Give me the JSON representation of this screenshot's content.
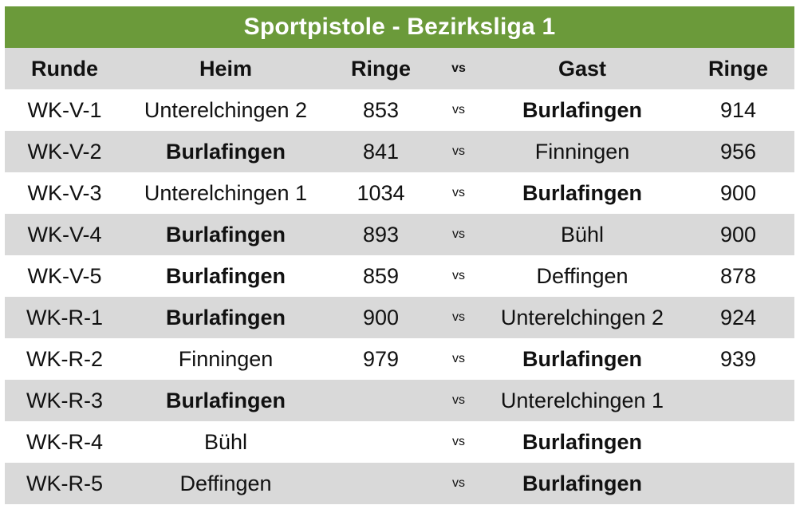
{
  "title": "Sportpistole - Bezirksliga 1",
  "colors": {
    "title_bg": "#6b9a3a",
    "title_text": "#ffffff",
    "row_shaded": "#d9d9d9",
    "row_plain": "#ffffff"
  },
  "headers": {
    "runde": "Runde",
    "heim": "Heim",
    "ringe_heim": "Ringe",
    "vs": "vs",
    "gast": "Gast",
    "ringe_gast": "Ringe"
  },
  "rows": [
    {
      "runde": "WK-V-1",
      "heim": "Unterelchingen 2",
      "heim_bold": false,
      "ringe_heim": "853",
      "vs": "vs",
      "gast": "Burlafingen",
      "gast_bold": true,
      "ringe_gast": "914"
    },
    {
      "runde": "WK-V-2",
      "heim": "Burlafingen",
      "heim_bold": true,
      "ringe_heim": "841",
      "vs": "vs",
      "gast": "Finningen",
      "gast_bold": false,
      "ringe_gast": "956"
    },
    {
      "runde": "WK-V-3",
      "heim": "Unterelchingen 1",
      "heim_bold": false,
      "ringe_heim": "1034",
      "vs": "vs",
      "gast": "Burlafingen",
      "gast_bold": true,
      "ringe_gast": "900"
    },
    {
      "runde": "WK-V-4",
      "heim": "Burlafingen",
      "heim_bold": true,
      "ringe_heim": "893",
      "vs": "vs",
      "gast": "Bühl",
      "gast_bold": false,
      "ringe_gast": "900"
    },
    {
      "runde": "WK-V-5",
      "heim": "Burlafingen",
      "heim_bold": true,
      "ringe_heim": "859",
      "vs": "vs",
      "gast": "Deffingen",
      "gast_bold": false,
      "ringe_gast": "878"
    },
    {
      "runde": "WK-R-1",
      "heim": "Burlafingen",
      "heim_bold": true,
      "ringe_heim": "900",
      "vs": "vs",
      "gast": "Unterelchingen 2",
      "gast_bold": false,
      "ringe_gast": "924"
    },
    {
      "runde": "WK-R-2",
      "heim": "Finningen",
      "heim_bold": false,
      "ringe_heim": "979",
      "vs": "vs",
      "gast": "Burlafingen",
      "gast_bold": true,
      "ringe_gast": "939"
    },
    {
      "runde": "WK-R-3",
      "heim": "Burlafingen",
      "heim_bold": true,
      "ringe_heim": "",
      "vs": "vs",
      "gast": "Unterelchingen 1",
      "gast_bold": false,
      "ringe_gast": ""
    },
    {
      "runde": "WK-R-4",
      "heim": "Bühl",
      "heim_bold": false,
      "ringe_heim": "",
      "vs": "vs",
      "gast": "Burlafingen",
      "gast_bold": true,
      "ringe_gast": ""
    },
    {
      "runde": "WK-R-5",
      "heim": "Deffingen",
      "heim_bold": false,
      "ringe_heim": "",
      "vs": "vs",
      "gast": "Burlafingen",
      "gast_bold": true,
      "ringe_gast": ""
    }
  ]
}
